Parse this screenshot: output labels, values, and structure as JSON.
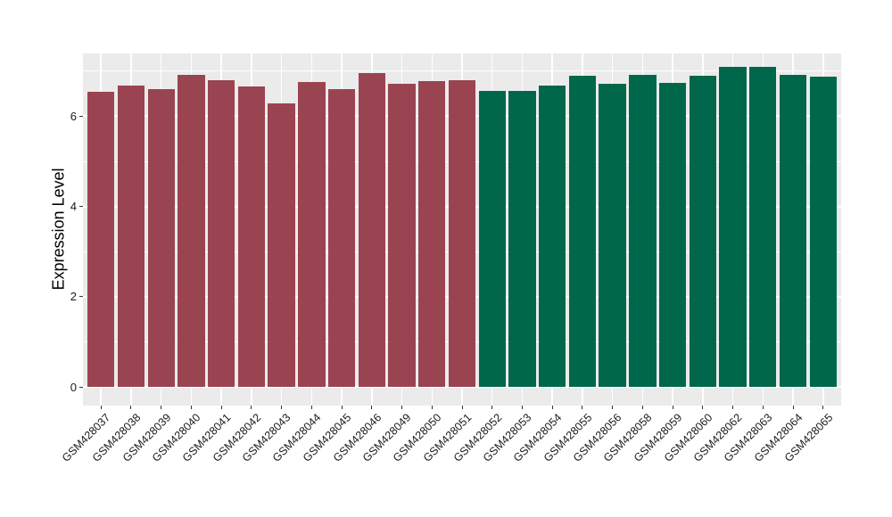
{
  "chart_data": {
    "type": "bar",
    "title": "",
    "xlabel": "",
    "ylabel": "Expression Level",
    "categories": [
      "GSM428037",
      "GSM428038",
      "GSM428039",
      "GSM428040",
      "GSM428041",
      "GSM428042",
      "GSM428043",
      "GSM428044",
      "GSM428045",
      "GSM428046",
      "GSM428049",
      "GSM428050",
      "GSM428051",
      "GSM428052",
      "GSM428053",
      "GSM428054",
      "GSM428055",
      "GSM428056",
      "GSM428058",
      "GSM428059",
      "GSM428060",
      "GSM428062",
      "GSM428063",
      "GSM428064",
      "GSM428065"
    ],
    "values": [
      6.54,
      6.68,
      6.61,
      6.92,
      6.8,
      6.65,
      6.28,
      6.75,
      6.6,
      6.95,
      6.72,
      6.77,
      6.8,
      6.56,
      6.56,
      6.67,
      6.9,
      6.71,
      6.91,
      6.74,
      6.9,
      7.1,
      7.1,
      6.92,
      6.88
    ],
    "bar_groups": [
      0,
      0,
      0,
      0,
      0,
      0,
      0,
      0,
      0,
      0,
      0,
      0,
      0,
      1,
      1,
      1,
      1,
      1,
      1,
      1,
      1,
      1,
      1,
      1,
      1
    ],
    "group_colors": [
      "#9A4452",
      "#00674B"
    ],
    "yticks": [
      0,
      2,
      4,
      6
    ],
    "minor_yticks": [
      1,
      3,
      5,
      7
    ],
    "ylim": [
      -0.41,
      7.39
    ],
    "bar_width_fraction": 0.9,
    "grid": "major and minor white gridlines, horizontal and vertical",
    "legend_position": "none",
    "panel_background": "#EBEBEB",
    "grid_color": "#FFFFFF",
    "axis_text_color": "#1A1A1A",
    "tick_mark_color": "#333333"
  }
}
